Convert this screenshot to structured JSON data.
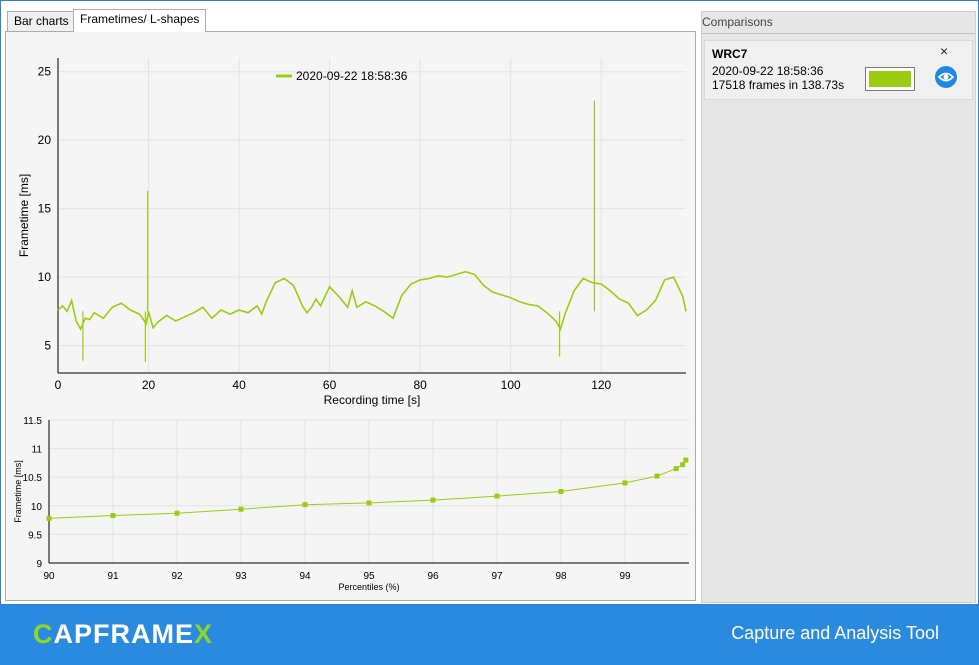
{
  "tabs": [
    {
      "label": "Bar charts",
      "active": false
    },
    {
      "label": "Frametimes/ L-shapes",
      "active": true
    }
  ],
  "colors": {
    "series": "#9acd12",
    "grid": "#e3e3e3",
    "chart_bg": "#f5f5f5",
    "footer_bg": "#2a8ae0",
    "logo_accent": "#8cd71f",
    "eye_button": "#1e88e5"
  },
  "chart_data": [
    {
      "type": "line",
      "title": "",
      "legend": {
        "entries": [
          "2020-09-22 18:58:36"
        ],
        "placement": "top-center"
      },
      "xlabel": "Recording time [s]",
      "ylabel": "Frametime [ms]",
      "xlim": [
        0,
        138.73
      ],
      "ylim": [
        3,
        26
      ],
      "xticks": [
        "0",
        "20",
        "40",
        "60",
        "80",
        "100",
        "120"
      ],
      "yticks": [
        "5",
        "10",
        "15",
        "20",
        "25"
      ],
      "grid": true,
      "series": [
        {
          "name": "2020-09-22 18:58:36",
          "x": [
            0,
            1,
            2,
            3,
            4,
            5,
            6,
            7,
            8,
            10,
            12,
            14,
            16,
            18,
            19.5,
            20,
            21,
            22,
            24,
            26,
            28,
            30,
            32,
            34,
            36,
            38,
            40,
            42,
            44,
            45,
            46,
            48,
            50,
            52,
            54,
            55,
            56,
            57,
            58,
            60,
            62,
            64,
            65,
            66,
            68,
            70,
            72,
            74,
            76,
            78,
            80,
            82,
            84,
            86,
            88,
            90,
            92,
            94,
            96,
            98,
            100,
            102,
            104,
            106,
            108,
            110,
            111,
            112,
            114,
            116,
            118,
            120,
            122,
            124,
            126,
            128,
            130,
            132,
            134,
            136,
            138,
            138.73
          ],
          "y": [
            7.6,
            7.9,
            7.5,
            8.3,
            6.8,
            6.2,
            7.0,
            6.9,
            7.4,
            7.0,
            7.8,
            8.1,
            7.6,
            7.3,
            6.6,
            7.5,
            6.3,
            6.7,
            7.2,
            6.8,
            7.1,
            7.4,
            7.8,
            7.0,
            7.6,
            7.3,
            7.6,
            7.4,
            7.9,
            7.3,
            8.2,
            9.6,
            9.9,
            9.4,
            7.9,
            7.4,
            7.8,
            8.4,
            7.9,
            9.3,
            8.6,
            7.8,
            9.0,
            7.8,
            8.2,
            7.9,
            7.5,
            7.0,
            8.7,
            9.5,
            9.8,
            9.9,
            10.1,
            10.0,
            10.2,
            10.4,
            10.2,
            9.4,
            8.9,
            8.7,
            8.5,
            8.2,
            8.0,
            7.9,
            7.4,
            6.8,
            6.2,
            7.3,
            9.0,
            9.9,
            9.6,
            9.5,
            9.0,
            8.4,
            8.1,
            7.2,
            7.6,
            8.3,
            9.8,
            10.0,
            8.6,
            7.5
          ]
        }
      ],
      "spikes": [
        {
          "x": 19.8,
          "y": 16.3
        },
        {
          "x": 118.5,
          "y": 22.9
        },
        {
          "x": 5.5,
          "y": 3.9
        },
        {
          "x": 19.3,
          "y": 3.8
        },
        {
          "x": 110.8,
          "y": 4.2
        }
      ]
    },
    {
      "type": "line",
      "title": "",
      "xlabel": "Percentiles (%)",
      "ylabel": "Frametime [ms]",
      "xlim": [
        90,
        100
      ],
      "ylim": [
        9,
        11.5
      ],
      "xticks": [
        "90",
        "91",
        "92",
        "93",
        "94",
        "95",
        "96",
        "97",
        "98",
        "99"
      ],
      "yticks": [
        "9",
        "9.5",
        "10",
        "10.5",
        "11",
        "11.5"
      ],
      "grid": true,
      "series": [
        {
          "name": "",
          "x": [
            90,
            91,
            92,
            93,
            94,
            95,
            96,
            97,
            98,
            99,
            99.5,
            99.8,
            99.9,
            99.95
          ],
          "y": [
            9.78,
            9.83,
            9.87,
            9.94,
            10.02,
            10.05,
            10.1,
            10.17,
            10.25,
            10.4,
            10.52,
            10.65,
            10.72,
            10.8
          ]
        }
      ]
    }
  ],
  "comparisons": {
    "header": "Comparisons",
    "items": [
      {
        "name": "WRC7",
        "date": "2020-09-22 18:58:36",
        "frames_info": "17518 frames in 138.73s",
        "close_glyph": "×",
        "color": "#9acd12"
      }
    ]
  },
  "footer": {
    "logo_main_1": "C",
    "logo_main_2": "APFRAME",
    "logo_accent": "X",
    "tagline": "Capture and Analysis Tool"
  }
}
